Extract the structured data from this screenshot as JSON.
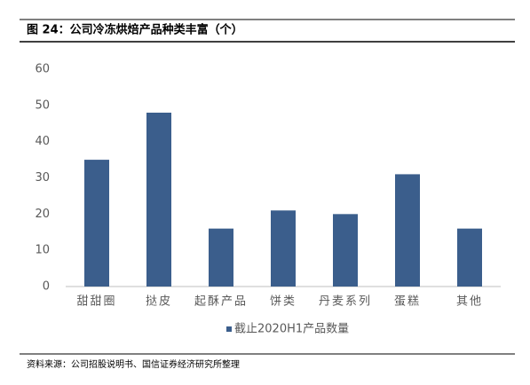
{
  "chart_data": {
    "type": "bar",
    "title": "图 24：公司冷冻烘焙产品种类丰富（个）",
    "categories": [
      "甜甜圈",
      "挞皮",
      "起酥产品",
      "饼类",
      "丹麦系列",
      "蛋糕",
      "其他"
    ],
    "series": [
      {
        "name": "截止2020H1产品数量",
        "color": "#3b5e8c",
        "values": [
          35,
          48,
          16,
          21,
          20,
          31,
          16
        ]
      }
    ],
    "ylim": [
      0,
      60
    ],
    "yticks": [
      0,
      10,
      20,
      30,
      40,
      50,
      60
    ],
    "grid": false,
    "legend": "bottom",
    "source": "资料来源：公司招股说明书、国信证券经济研究所整理"
  }
}
